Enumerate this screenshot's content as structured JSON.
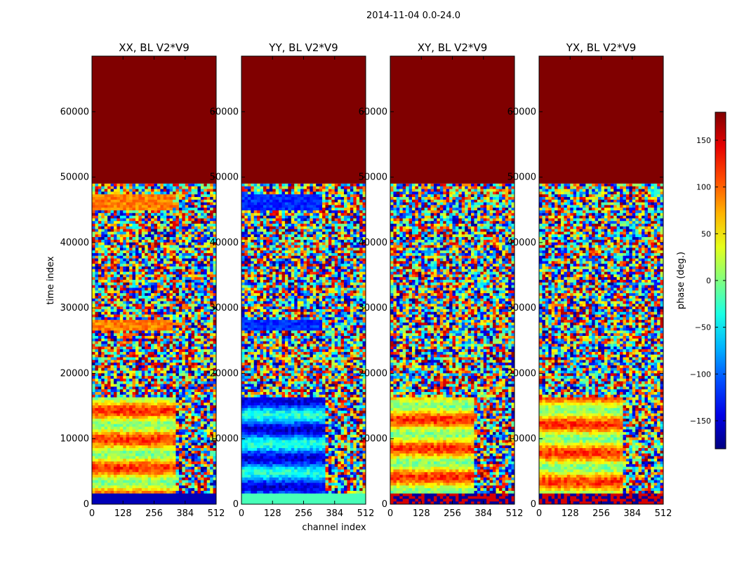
{
  "figure": {
    "suptitle": "2014-11-04 0.0-24.0"
  },
  "chart_data": {
    "type": "heatmap",
    "colormap": "jet",
    "panels": [
      {
        "title": "XX, BL V2*V9",
        "band_hue_shift": 0
      },
      {
        "title": "YY, BL V2*V9",
        "band_hue_shift": 1
      },
      {
        "title": "XY, BL V2*V9",
        "band_hue_shift": 2
      },
      {
        "title": "YX, BL V2*V9",
        "band_hue_shift": 3
      }
    ],
    "xlabel": "channel index",
    "ylabel": "time index",
    "xlim": [
      0,
      512
    ],
    "ylim": [
      0,
      68500
    ],
    "xticks": [
      0,
      128,
      256,
      384,
      512
    ],
    "yticks": [
      0,
      10000,
      20000,
      30000,
      40000,
      50000,
      60000
    ],
    "constant_region": {
      "y_from": 49000,
      "y_to": 68500,
      "value": 180
    },
    "colorbar": {
      "label": "phase (deg.)",
      "range": [
        -180,
        180
      ],
      "ticks": [
        150,
        100,
        50,
        0,
        -50,
        -100,
        -150
      ],
      "tick_labels": [
        "150",
        "100",
        "50",
        "0",
        "−50",
        "−100",
        "−150"
      ]
    }
  }
}
